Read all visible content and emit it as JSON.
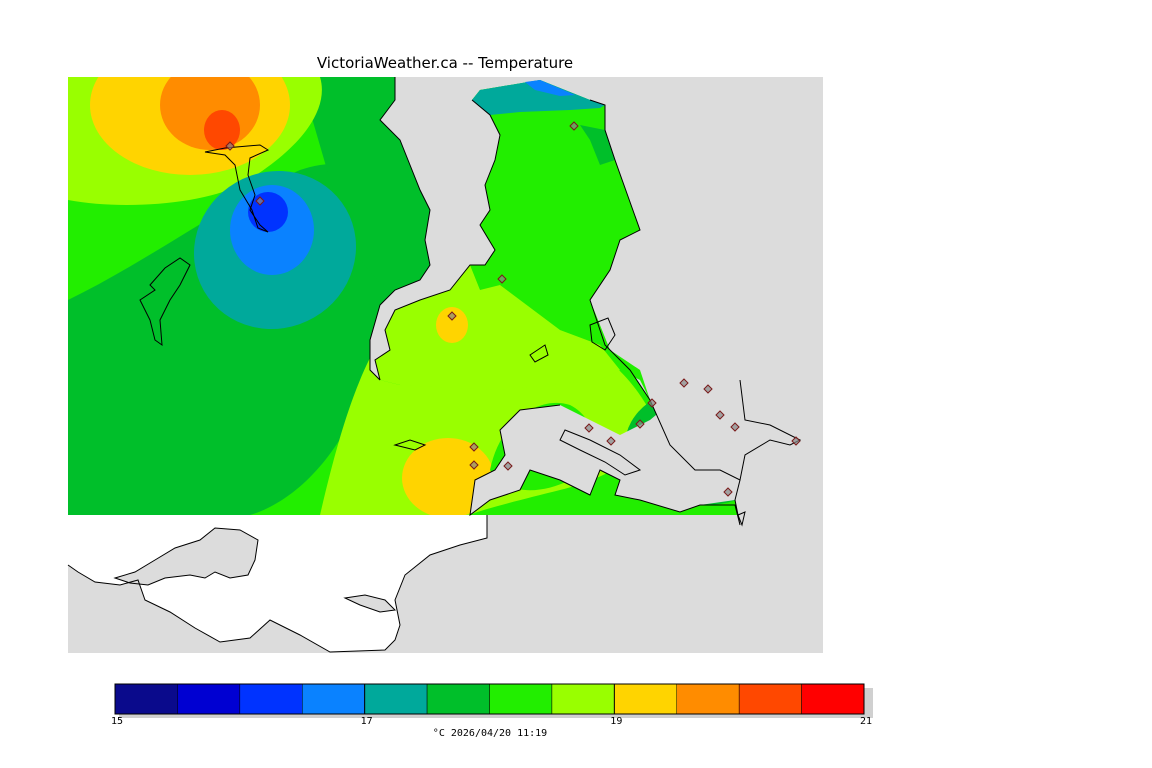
{
  "title": "VictoriaWeather.ca -- Temperature",
  "caption": "°C  2026/04/20 11:19",
  "colors": {
    "land_outside": "#dcdcdc",
    "water": "#ffffff",
    "outline": "#000000"
  },
  "legend": {
    "min": 15,
    "max": 21,
    "tick_labels": [
      "15",
      "17",
      "19",
      "21"
    ],
    "bins": [
      {
        "from": 15.0,
        "to": 15.5,
        "color": "#0a0a8c"
      },
      {
        "from": 15.5,
        "to": 16.0,
        "color": "#0000d2"
      },
      {
        "from": 16.0,
        "to": 16.5,
        "color": "#0033ff"
      },
      {
        "from": 16.5,
        "to": 17.0,
        "color": "#0a82ff"
      },
      {
        "from": 17.0,
        "to": 17.5,
        "color": "#00a99b"
      },
      {
        "from": 17.5,
        "to": 18.0,
        "color": "#00bf2a"
      },
      {
        "from": 18.0,
        "to": 18.5,
        "color": "#22ee00"
      },
      {
        "from": 18.5,
        "to": 19.0,
        "color": "#99ff00"
      },
      {
        "from": 19.0,
        "to": 19.5,
        "color": "#ffd400"
      },
      {
        "from": 19.5,
        "to": 20.0,
        "color": "#ff8c00"
      },
      {
        "from": 20.0,
        "to": 20.5,
        "color": "#ff4800"
      },
      {
        "from": 20.5,
        "to": 21.0,
        "color": "#ff0000"
      }
    ]
  }
}
